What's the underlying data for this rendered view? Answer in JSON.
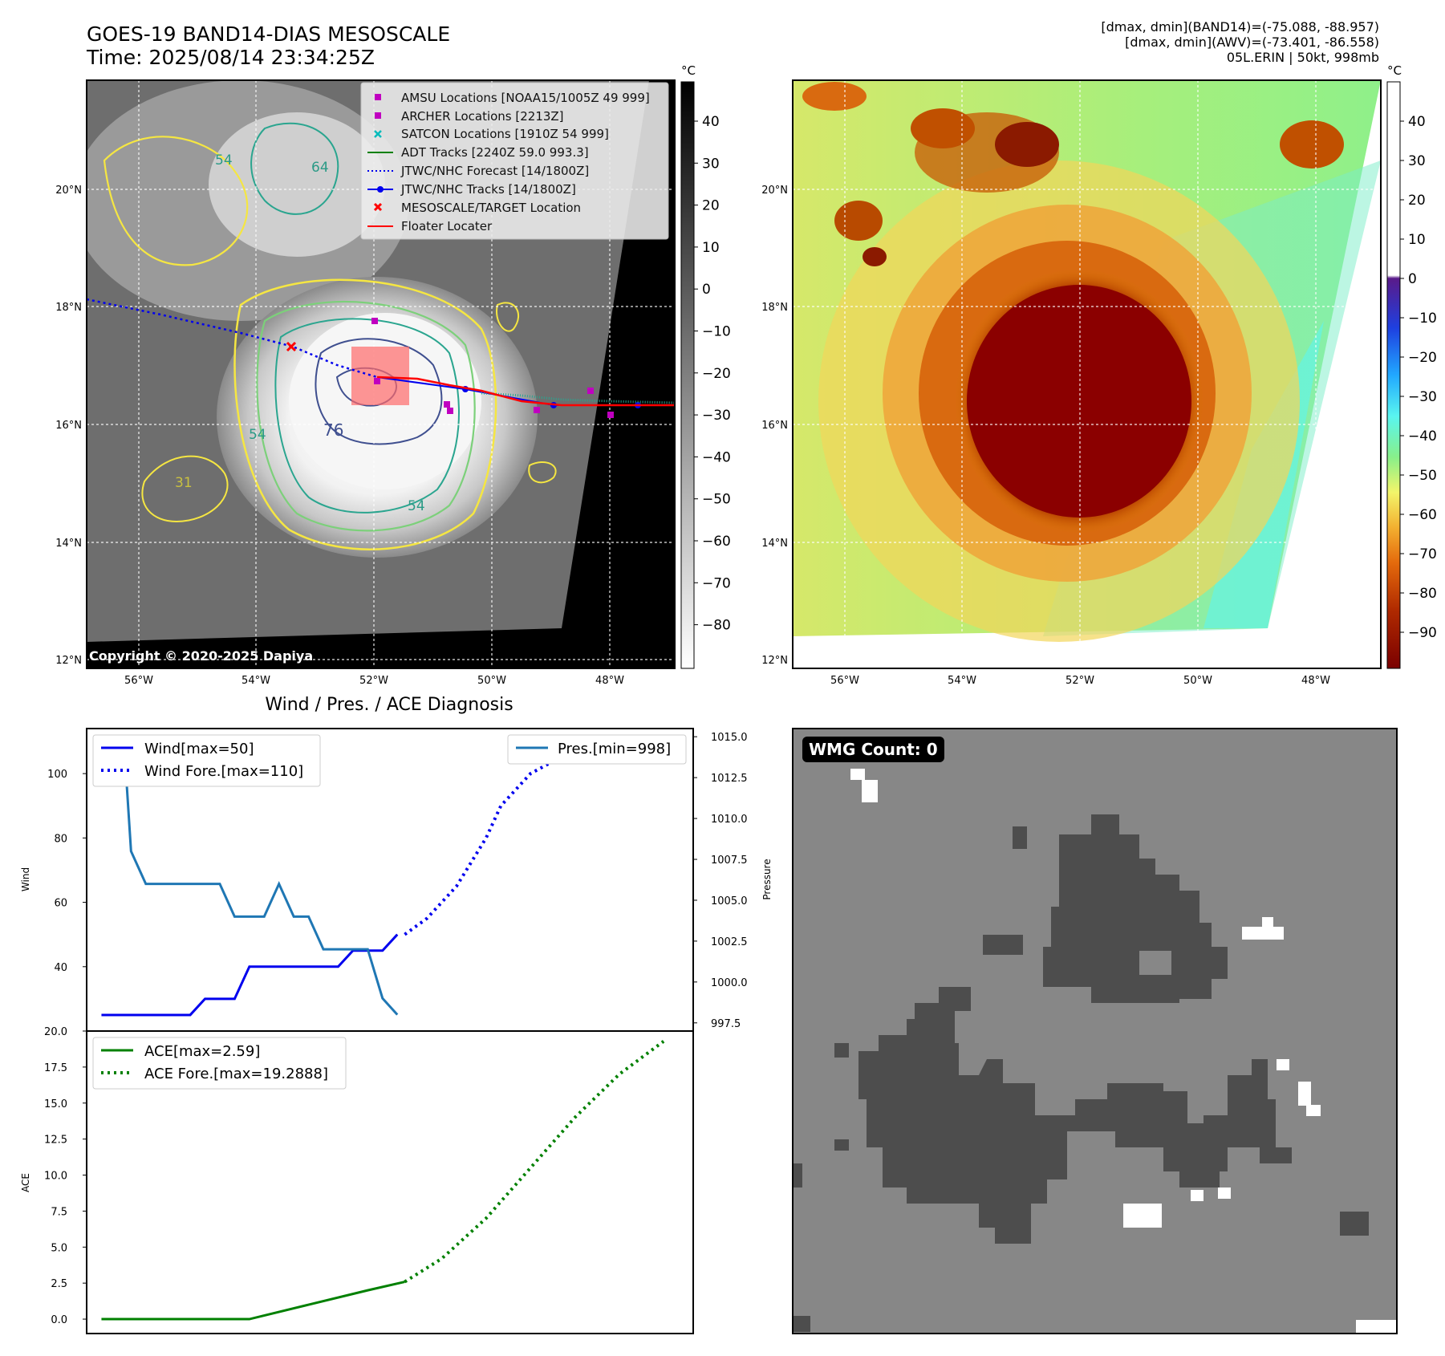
{
  "header": {
    "title_line1": "GOES-19 BAND14-DIAS MESOSCALE",
    "title_line2": "Time: 2025/08/14 23:34:25Z",
    "right_line1": "[dmax, dmin](BAND14)=(-75.088, -88.957)",
    "right_line2": "[dmax, dmin](AWV)=(-73.401, -86.558)",
    "right_line3": "05L.ERIN | 50kt, 998mb"
  },
  "map": {
    "lat_labels": [
      "20°N",
      "18°N",
      "16°N",
      "14°N",
      "12°N"
    ],
    "lon_labels": [
      "56°W",
      "54°W",
      "52°W",
      "50°W",
      "48°W"
    ],
    "copyright": "Copyright © 2020-2025 Dapiya",
    "contour_labels": [
      "54",
      "64",
      "54",
      "76",
      "54",
      "31"
    ],
    "legend": [
      "AMSU Locations [NOAA15/1005Z 49 999]",
      "ARCHER Locations [2213Z]",
      "SATCON Locations [1910Z 54 999]",
      "ADT Tracks [2240Z 59.0 993.3]",
      "JTWC/NHC Forecast [14/1800Z]",
      "JTWC/NHC Tracks [14/1800Z]",
      "MESOSCALE/TARGET Location",
      "Floater Locater"
    ],
    "unit": "°C",
    "gray_ticks": [
      "40",
      "30",
      "20",
      "10",
      "0",
      "−10",
      "−20",
      "−30",
      "−40",
      "−50",
      "−60",
      "−70",
      "−80"
    ],
    "color_ticks": [
      "40",
      "30",
      "20",
      "10",
      "0",
      "−10",
      "−20",
      "−30",
      "−40",
      "−50",
      "−60",
      "−70",
      "−80",
      "−90"
    ]
  },
  "diag": {
    "title": "Wind / Pres. / ACE Diagnosis",
    "wind_ylabel": "Wind",
    "pres_ylabel": "Pressure",
    "ace_ylabel": "ACE",
    "wind_ticks": [
      "100",
      "80",
      "60",
      "40"
    ],
    "pres_ticks": [
      "1015.0",
      "1012.5",
      "1010.0",
      "1007.5",
      "1005.0",
      "1002.5",
      "1000.0",
      "997.5"
    ],
    "ace_ticks": [
      "20.0",
      "17.5",
      "15.0",
      "12.5",
      "10.0",
      "7.5",
      "5.0",
      "2.5",
      "0.0"
    ],
    "legend_wind": "Wind[max=50]",
    "legend_wind_fore": "Wind Fore.[max=110]",
    "legend_pres": "Pres.[min=998]",
    "legend_ace": "ACE[max=2.59]",
    "legend_ace_fore": "ACE Fore.[max=19.2888]"
  },
  "wmg": {
    "label": "WMG Count: 0"
  },
  "chart_data": [
    {
      "type": "line",
      "title": "Wind / Pres. / ACE Diagnosis",
      "panel": "wind_pressure",
      "series": [
        {
          "name": "Wind[max=50]",
          "axis": "left",
          "color": "#0000ee",
          "x": [
            0,
            1,
            2,
            3,
            4,
            5,
            6,
            7,
            8,
            9,
            10,
            11,
            12,
            13,
            14,
            15,
            16,
            17,
            18,
            19,
            20
          ],
          "values": [
            25,
            25,
            25,
            25,
            25,
            25,
            25,
            30,
            30,
            30,
            40,
            40,
            40,
            40,
            40,
            40,
            40,
            45,
            45,
            45,
            50
          ]
        },
        {
          "name": "Wind Fore.[max=110]",
          "axis": "left",
          "color": "#0000ee",
          "style": "dotted",
          "x": [
            20.5,
            22,
            24,
            26,
            27,
            29,
            31,
            33
          ],
          "values": [
            50,
            55,
            65,
            80,
            90,
            100,
            105,
            108
          ]
        },
        {
          "name": "Pres.[min=998]",
          "axis": "right",
          "color": "#1f77b4",
          "x": [
            1,
            1.5,
            2,
            3,
            4,
            5,
            6,
            7,
            8,
            9,
            10,
            11,
            12,
            13,
            14,
            15,
            16,
            17,
            18,
            19,
            20
          ],
          "values": [
            1015,
            1015,
            1008,
            1006,
            1006,
            1006,
            1006,
            1006,
            1006,
            1004,
            1004,
            1004,
            1006,
            1004,
            1004,
            1002,
            1002,
            1002,
            1002,
            999,
            998
          ]
        }
      ],
      "ylim_left": [
        20,
        114
      ],
      "ylim_right": [
        997,
        1015.5
      ]
    },
    {
      "type": "line",
      "panel": "ace",
      "ylabel": "ACE",
      "series": [
        {
          "name": "ACE[max=2.59]",
          "color": "#008000",
          "x": [
            0,
            10,
            14,
            18,
            20.5
          ],
          "values": [
            0,
            0,
            1,
            2,
            2.59
          ]
        },
        {
          "name": "ACE Fore.[max=19.2888]",
          "color": "#008000",
          "style": "dotted",
          "x": [
            20.5,
            23,
            26,
            29,
            32,
            35,
            38
          ],
          "values": [
            2.59,
            4.2,
            7,
            10.5,
            14,
            17,
            19.29
          ]
        }
      ],
      "ylim": [
        -1,
        20
      ]
    }
  ],
  "colors": {
    "wind": "#0000ee",
    "pressure": "#1f77b4",
    "ace": "#008000",
    "track_red": "#ff0000",
    "magenta": "#c000c0",
    "cyan": "#00bbbb",
    "wmg_bg": "#878787",
    "wmg_dark": "#4d4d4d"
  }
}
